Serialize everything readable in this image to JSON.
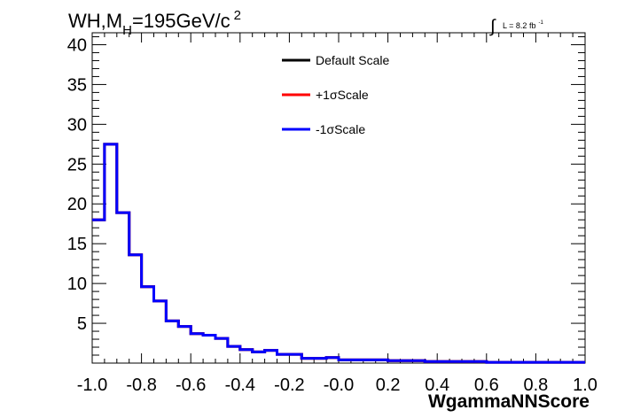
{
  "chart_data": {
    "type": "line",
    "title_main": "WH,M",
    "title_sub": "H",
    "title_rest": "=195GeV/c",
    "title_sup": "2",
    "lumi_integral": "∫",
    "lumi_text": "L = 8.2 fb",
    "lumi_sup": "-1",
    "xlabel": "WgammaNNScore",
    "ylabel": "",
    "xlim": [
      -1.0,
      1.0
    ],
    "ylim": [
      0,
      41.5
    ],
    "grid": false,
    "legend_position": "top-center",
    "x_tick_labels": [
      {
        "value": -1.0,
        "label": "-1.0"
      },
      {
        "value": -0.8,
        "label": "-0.8"
      },
      {
        "value": -0.6,
        "label": "-0.6"
      },
      {
        "value": -0.4,
        "label": "-0.4"
      },
      {
        "value": -0.2,
        "label": "-0.2"
      },
      {
        "value": 0.0,
        "label": "-0.0"
      },
      {
        "value": 0.2,
        "label": "0.2"
      },
      {
        "value": 0.4,
        "label": "0.4"
      },
      {
        "value": 0.6,
        "label": "0.6"
      },
      {
        "value": 0.8,
        "label": "0.8"
      },
      {
        "value": 1.0,
        "label": "1.0"
      }
    ],
    "y_tick_labels": [
      {
        "value": 5,
        "label": "5"
      },
      {
        "value": 10,
        "label": "10"
      },
      {
        "value": 15,
        "label": "15"
      },
      {
        "value": 20,
        "label": "20"
      },
      {
        "value": 25,
        "label": "25"
      },
      {
        "value": 30,
        "label": "30"
      },
      {
        "value": 35,
        "label": "35"
      },
      {
        "value": 40,
        "label": "40"
      }
    ],
    "bin_edges": [
      -1.0,
      -0.95,
      -0.9,
      -0.85,
      -0.8,
      -0.75,
      -0.7,
      -0.65,
      -0.6,
      -0.55,
      -0.5,
      -0.45,
      -0.4,
      -0.35,
      -0.3,
      -0.25,
      -0.2,
      -0.15,
      -0.1,
      -0.05,
      0.0,
      0.05,
      0.1,
      0.15,
      0.2,
      0.25,
      0.3,
      0.35,
      0.4,
      0.45,
      0.5,
      0.55,
      0.6,
      0.65,
      0.7,
      0.75,
      0.8,
      0.85,
      0.9,
      0.95,
      1.0
    ],
    "series": [
      {
        "name": "Default Scale",
        "color": "#000000",
        "values": [
          18.0,
          27.5,
          18.9,
          13.6,
          9.6,
          7.8,
          5.3,
          4.6,
          3.7,
          3.5,
          3.1,
          2.1,
          1.7,
          1.4,
          1.6,
          1.1,
          1.1,
          0.6,
          0.6,
          0.7,
          0.4,
          0.4,
          0.4,
          0.4,
          0.3,
          0.3,
          0.3,
          0.2,
          0.2,
          0.2,
          0.2,
          0.2,
          0.1,
          0.1,
          0.1,
          0.1,
          0.1,
          0.1,
          0.1,
          0.1
        ]
      },
      {
        "name": "+1σScale",
        "color": "#ff0000",
        "values": [
          18.0,
          27.5,
          18.9,
          13.6,
          9.6,
          7.8,
          5.3,
          4.6,
          3.7,
          3.5,
          3.1,
          2.1,
          1.7,
          1.4,
          1.6,
          1.1,
          1.1,
          0.6,
          0.6,
          0.7,
          0.4,
          0.4,
          0.4,
          0.4,
          0.3,
          0.3,
          0.3,
          0.2,
          0.2,
          0.2,
          0.2,
          0.2,
          0.1,
          0.1,
          0.1,
          0.1,
          0.1,
          0.1,
          0.1,
          0.1
        ]
      },
      {
        "name": "-1σScale",
        "color": "#0000ff",
        "values": [
          18.0,
          27.5,
          18.9,
          13.6,
          9.6,
          7.8,
          5.3,
          4.6,
          3.7,
          3.5,
          3.1,
          2.1,
          1.7,
          1.4,
          1.6,
          1.1,
          1.1,
          0.6,
          0.6,
          0.7,
          0.4,
          0.4,
          0.4,
          0.4,
          0.3,
          0.3,
          0.3,
          0.2,
          0.2,
          0.2,
          0.2,
          0.2,
          0.1,
          0.1,
          0.1,
          0.1,
          0.1,
          0.1,
          0.1,
          0.1
        ]
      }
    ]
  }
}
